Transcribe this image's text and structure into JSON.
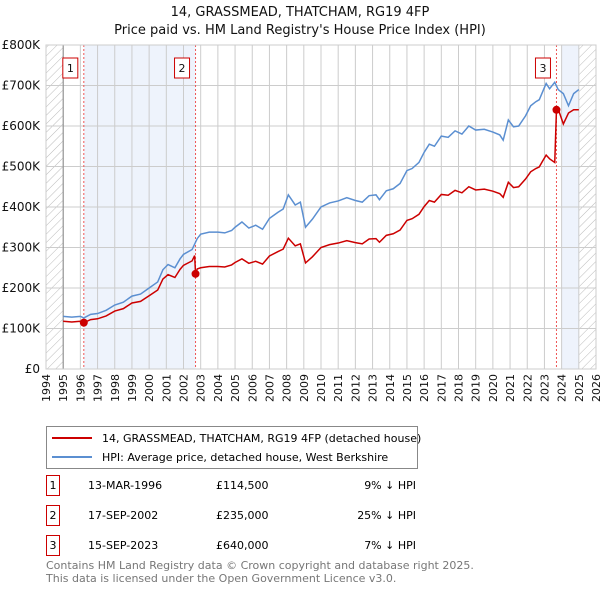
{
  "title": "14, GRASSMEAD, THATCHAM, RG19 4FP",
  "subtitle": "Price paid vs. HM Land Registry's House Price Index (HPI)",
  "chart_data": {
    "type": "line",
    "xlim": [
      1994,
      2026
    ],
    "ylim": [
      0,
      800000
    ],
    "yticks": [
      {
        "v": 0,
        "label": "£0"
      },
      {
        "v": 100000,
        "label": "£100K"
      },
      {
        "v": 200000,
        "label": "£200K"
      },
      {
        "v": 300000,
        "label": "£300K"
      },
      {
        "v": 400000,
        "label": "£400K"
      },
      {
        "v": 500000,
        "label": "£500K"
      },
      {
        "v": 600000,
        "label": "£600K"
      },
      {
        "v": 700000,
        "label": "£700K"
      },
      {
        "v": 800000,
        "label": "£800K"
      }
    ],
    "xticks": [
      1994,
      1995,
      1996,
      1997,
      1998,
      1999,
      2000,
      2001,
      2002,
      2003,
      2004,
      2005,
      2006,
      2007,
      2008,
      2009,
      2010,
      2011,
      2012,
      2013,
      2014,
      2015,
      2016,
      2017,
      2018,
      2019,
      2020,
      2021,
      2022,
      2023,
      2024,
      2025,
      2026
    ],
    "grid": true,
    "hatched_ranges": [
      [
        1994,
        1995
      ],
      [
        2025,
        2026
      ]
    ],
    "shaded_ranges": [
      [
        1996.2,
        2002.7
      ],
      [
        2024.0,
        2025.0
      ]
    ],
    "series": [
      {
        "name": "HPI: Average price, detached house, West Berkshire",
        "color": "#5b8fd1",
        "x": [
          1995,
          1995.5,
          1996,
          1996.2,
          1996.6,
          1997,
          1997.5,
          1998,
          1998.5,
          1999,
          1999.5,
          2000,
          2000.5,
          2000.8,
          2001.1,
          2001.5,
          2001.8,
          2002,
          2002.5,
          2002.8,
          2003,
          2003.5,
          2004,
          2004.4,
          2004.8,
          2005,
          2005.4,
          2005.8,
          2006.2,
          2006.6,
          2007,
          2007.5,
          2007.8,
          2008.1,
          2008.5,
          2008.8,
          2009.1,
          2009.5,
          2010,
          2010.5,
          2011,
          2011.5,
          2012,
          2012.4,
          2012.8,
          2013.2,
          2013.4,
          2013.8,
          2014.2,
          2014.6,
          2015,
          2015.3,
          2015.7,
          2016,
          2016.3,
          2016.6,
          2017,
          2017.4,
          2017.8,
          2018.2,
          2018.6,
          2019,
          2019.5,
          2020,
          2020.4,
          2020.6,
          2020.9,
          2021.2,
          2021.5,
          2021.9,
          2022.2,
          2022.5,
          2022.7,
          2022.9,
          2023.1,
          2023.3,
          2023.6,
          2023.8,
          2024.1,
          2024.4,
          2024.7,
          2025
        ],
        "y": [
          130000,
          128000,
          130000,
          126000,
          135000,
          137000,
          145000,
          158000,
          165000,
          180000,
          185000,
          200000,
          215000,
          245000,
          258000,
          250000,
          272000,
          283000,
          295000,
          322000,
          333000,
          338000,
          338000,
          336000,
          342000,
          350000,
          363000,
          348000,
          355000,
          345000,
          372000,
          387000,
          395000,
          430000,
          405000,
          412000,
          350000,
          370000,
          400000,
          410000,
          415000,
          423000,
          416000,
          412000,
          428000,
          430000,
          418000,
          440000,
          445000,
          458000,
          490000,
          495000,
          510000,
          535000,
          555000,
          550000,
          575000,
          572000,
          588000,
          580000,
          600000,
          590000,
          592000,
          585000,
          578000,
          565000,
          615000,
          598000,
          600000,
          625000,
          650000,
          660000,
          665000,
          685000,
          705000,
          692000,
          708000,
          690000,
          680000,
          650000,
          680000,
          690000
        ]
      },
      {
        "name": "14, GRASSMEAD, THATCHAM, RG19 4FP (detached house)",
        "color": "#cc0000",
        "x": [
          1995,
          1995.5,
          1996,
          1996.2,
          1996.6,
          1997,
          1997.5,
          1998,
          1998.5,
          1999,
          1999.5,
          2000,
          2000.5,
          2000.8,
          2001.1,
          2001.5,
          2001.8,
          2002,
          2002.5,
          2002.65,
          2002.7,
          2002.8,
          2003,
          2003.5,
          2004,
          2004.4,
          2004.8,
          2005,
          2005.4,
          2005.8,
          2006.2,
          2006.6,
          2007,
          2007.5,
          2007.8,
          2008.1,
          2008.5,
          2008.8,
          2009.1,
          2009.5,
          2010,
          2010.5,
          2011,
          2011.5,
          2012,
          2012.4,
          2012.8,
          2013.2,
          2013.4,
          2013.8,
          2014.2,
          2014.6,
          2015,
          2015.3,
          2015.7,
          2016,
          2016.3,
          2016.6,
          2017,
          2017.4,
          2017.8,
          2018.2,
          2018.6,
          2019,
          2019.5,
          2020,
          2020.4,
          2020.6,
          2020.9,
          2021.2,
          2021.5,
          2021.9,
          2022.2,
          2022.5,
          2022.7,
          2022.9,
          2023.1,
          2023.3,
          2023.6,
          2023.7,
          2023.8,
          2024.1,
          2024.4,
          2024.7,
          2025
        ],
        "y": [
          118000,
          116000,
          118000,
          114500,
          122000,
          124000,
          131000,
          143000,
          149000,
          163000,
          167000,
          181000,
          195000,
          222000,
          233000,
          226000,
          246000,
          256000,
          267000,
          280000,
          235000,
          247000,
          250000,
          253000,
          253000,
          252000,
          257000,
          263000,
          272000,
          261000,
          266000,
          259000,
          279000,
          290000,
          296000,
          323000,
          304000,
          309000,
          262000,
          277000,
          300000,
          307000,
          311000,
          317000,
          312000,
          309000,
          321000,
          322000,
          313000,
          330000,
          334000,
          343000,
          367000,
          371000,
          382000,
          401000,
          416000,
          412000,
          431000,
          429000,
          441000,
          435000,
          450000,
          442000,
          444000,
          439000,
          433000,
          424000,
          461000,
          448000,
          450000,
          469000,
          487000,
          495000,
          499000,
          514000,
          528000,
          519000,
          510000,
          640000,
          642000,
          605000,
          632000,
          640000,
          640000
        ]
      }
    ],
    "sales": [
      {
        "id": "1",
        "x": 1996.2,
        "y": 114500,
        "date": "13-MAR-1996",
        "price": "£114,500",
        "hpi": "9% ↓ HPI"
      },
      {
        "id": "2",
        "x": 2002.7,
        "y": 235000,
        "date": "17-SEP-2002",
        "price": "£235,000",
        "hpi": "25% ↓ HPI"
      },
      {
        "id": "3",
        "x": 2023.7,
        "y": 640000,
        "date": "15-SEP-2023",
        "price": "£640,000",
        "hpi": "7% ↓ HPI"
      }
    ]
  },
  "legend": {
    "red": "14, GRASSMEAD, THATCHAM, RG19 4FP (detached house)",
    "blue": "HPI: Average price, detached house, West Berkshire"
  },
  "footer": {
    "line1": "Contains HM Land Registry data © Crown copyright and database right 2025.",
    "line2": "This data is licensed under the Open Government Licence v3.0."
  }
}
